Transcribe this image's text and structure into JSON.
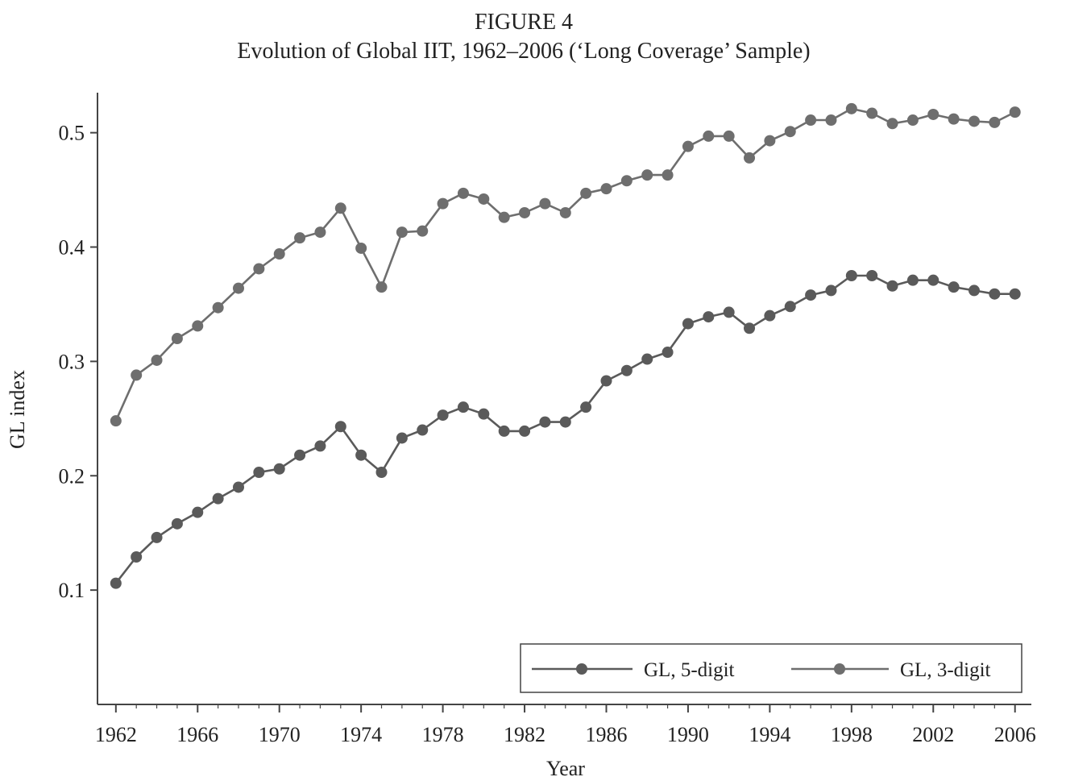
{
  "figure": {
    "label": "FIGURE 4",
    "title": "Evolution of Global IIT, 1962–2006 (‘Long Coverage’ Sample)"
  },
  "chart_data": {
    "type": "line",
    "title": "Evolution of Global IIT, 1962–2006 (‘Long Coverage’ Sample)",
    "xlabel": "Year",
    "ylabel": "GL index",
    "xlim": [
      1961.1,
      2006.8
    ],
    "ylim": [
      0.0,
      0.535
    ],
    "xticks": [
      1962,
      1966,
      1970,
      1974,
      1978,
      1982,
      1986,
      1990,
      1994,
      1998,
      2002,
      2006
    ],
    "yticks": [
      0.1,
      0.2,
      0.3,
      0.4,
      0.5
    ],
    "ytick_labels": [
      "0.1",
      "0.2",
      "0.3",
      "0.4",
      "0.5"
    ],
    "grid": false,
    "legend_position": "bottom-right",
    "x": [
      1962,
      1963,
      1964,
      1965,
      1966,
      1967,
      1968,
      1969,
      1970,
      1971,
      1972,
      1973,
      1974,
      1975,
      1976,
      1977,
      1978,
      1979,
      1980,
      1981,
      1982,
      1983,
      1984,
      1985,
      1986,
      1987,
      1988,
      1989,
      1990,
      1991,
      1992,
      1993,
      1994,
      1995,
      1996,
      1997,
      1998,
      1999,
      2000,
      2001,
      2002,
      2003,
      2004,
      2005,
      2006
    ],
    "series": [
      {
        "name": "GL, 5-digit",
        "color": "#5a5a5a",
        "values": [
          0.106,
          0.129,
          0.146,
          0.158,
          0.168,
          0.18,
          0.19,
          0.203,
          0.206,
          0.218,
          0.226,
          0.243,
          0.218,
          0.203,
          0.233,
          0.24,
          0.253,
          0.26,
          0.254,
          0.239,
          0.239,
          0.247,
          0.247,
          0.26,
          0.283,
          0.292,
          0.302,
          0.308,
          0.333,
          0.339,
          0.343,
          0.329,
          0.34,
          0.348,
          0.358,
          0.362,
          0.375,
          0.375,
          0.366,
          0.371,
          0.371,
          0.365,
          0.362,
          0.359,
          0.359
        ]
      },
      {
        "name": "GL, 3-digit",
        "color": "#6e6e6e",
        "values": [
          0.248,
          0.288,
          0.301,
          0.32,
          0.331,
          0.347,
          0.364,
          0.381,
          0.394,
          0.408,
          0.413,
          0.434,
          0.399,
          0.365,
          0.413,
          0.414,
          0.438,
          0.447,
          0.442,
          0.426,
          0.43,
          0.438,
          0.43,
          0.447,
          0.451,
          0.458,
          0.463,
          0.463,
          0.488,
          0.497,
          0.497,
          0.478,
          0.493,
          0.501,
          0.511,
          0.511,
          0.521,
          0.517,
          0.508,
          0.511,
          0.516,
          0.512,
          0.51,
          0.509,
          0.518
        ]
      }
    ]
  }
}
